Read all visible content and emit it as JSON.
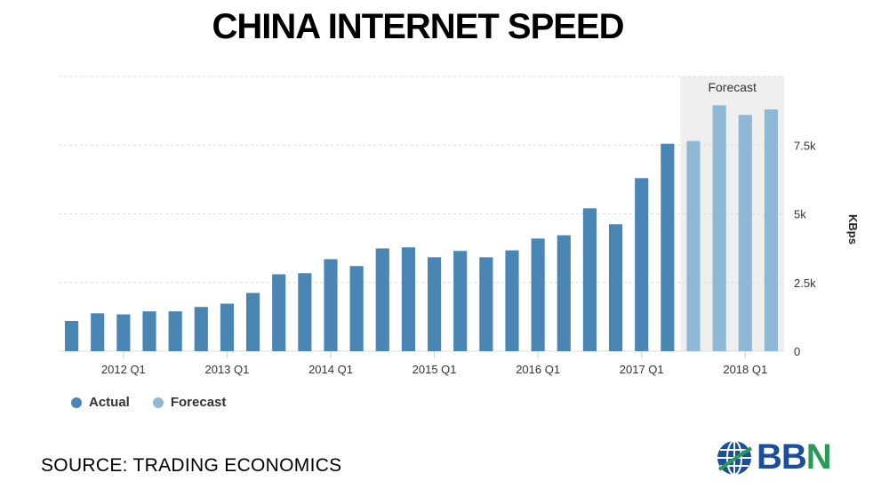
{
  "title": "CHINA INTERNET SPEED",
  "source": "SOURCE: TRADING ECONOMICS",
  "logo": {
    "text_b": "BB",
    "text_n": "N",
    "colors": [
      "#1b4f9c",
      "#2a9a56"
    ],
    "icon": "globe-icon"
  },
  "legend": [
    {
      "label": "Actual",
      "color": "#4a86b4"
    },
    {
      "label": "Forecast",
      "color": "#8fb7d6"
    }
  ],
  "chart_data": {
    "type": "bar",
    "ylabel": "KBps",
    "ylim": [
      0,
      10000
    ],
    "yticks": [
      0,
      2500,
      5000,
      7500
    ],
    "ytick_labels": [
      "0",
      "2.5k",
      "5k",
      "7.5k"
    ],
    "xtick_labels": [
      "2012 Q1",
      "2013 Q1",
      "2014 Q1",
      "2015 Q1",
      "2016 Q1",
      "2017 Q1",
      "2018 Q1"
    ],
    "xtick_index": [
      2,
      6,
      10,
      14,
      18,
      22,
      26
    ],
    "forecast_band_label": "Forecast",
    "forecast_start_index": 24,
    "categories": [
      "2011 Q3",
      "2011 Q4",
      "2012 Q1",
      "2012 Q2",
      "2012 Q3",
      "2012 Q4",
      "2013 Q1",
      "2013 Q2",
      "2013 Q3",
      "2013 Q4",
      "2014 Q1",
      "2014 Q2",
      "2014 Q3",
      "2014 Q4",
      "2015 Q1",
      "2015 Q2",
      "2015 Q3",
      "2015 Q4",
      "2016 Q1",
      "2016 Q2",
      "2016 Q3",
      "2016 Q4",
      "2017 Q1",
      "2017 Q2",
      "2017 Q3",
      "2017 Q4",
      "2018 Q1",
      "2018 Q2"
    ],
    "series": [
      {
        "name": "Actual",
        "color": "#4a86b4",
        "values": [
          1100,
          1380,
          1340,
          1450,
          1450,
          1610,
          1730,
          2120,
          2800,
          2840,
          3350,
          3100,
          3740,
          3780,
          3420,
          3650,
          3420,
          3670,
          4100,
          4220,
          5200,
          4620,
          6300,
          7550,
          null,
          null,
          null,
          null
        ]
      },
      {
        "name": "Forecast",
        "color": "#8fb7d6",
        "values": [
          null,
          null,
          null,
          null,
          null,
          null,
          null,
          null,
          null,
          null,
          null,
          null,
          null,
          null,
          null,
          null,
          null,
          null,
          null,
          null,
          null,
          null,
          null,
          null,
          7650,
          8950,
          8600,
          8800
        ]
      }
    ],
    "grid": true,
    "legend_position": "bottom-left"
  }
}
